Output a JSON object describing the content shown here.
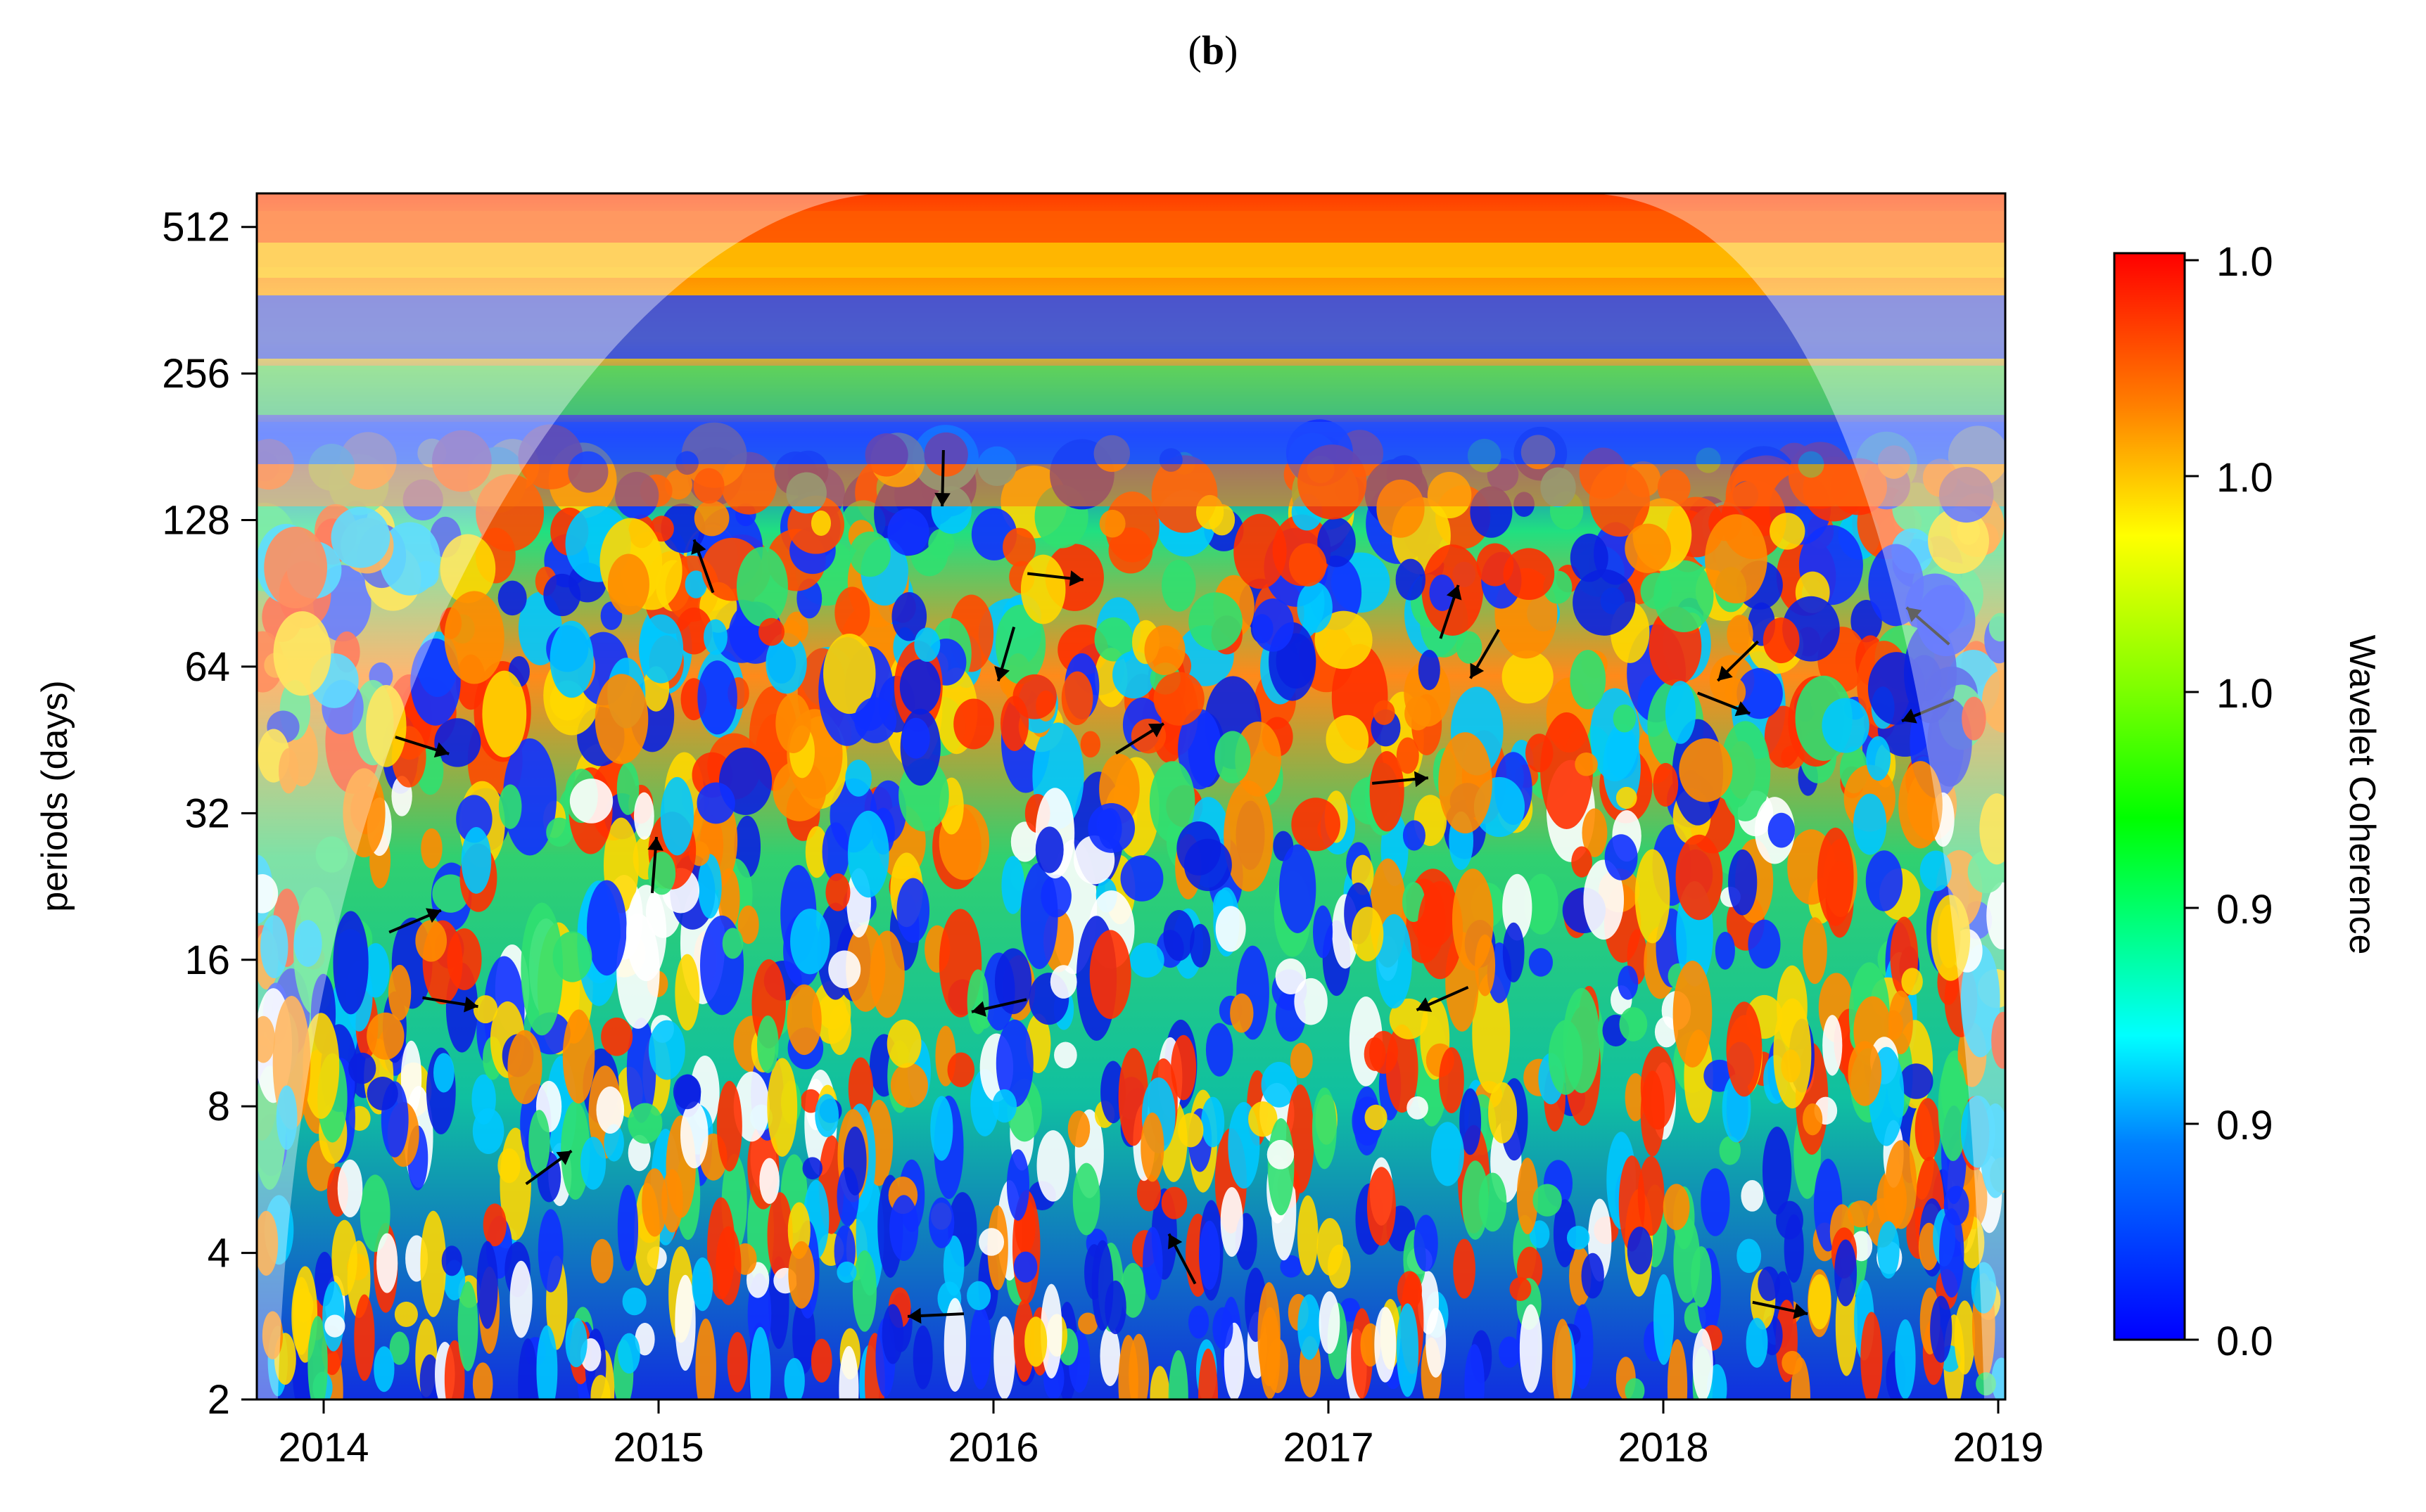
{
  "panel_label": "b",
  "chart_data": {
    "type": "heatmap",
    "subtype": "wavelet-coherence",
    "ylabel": "periods (days)",
    "y_scale": "log2",
    "ylim": [
      2,
      600
    ],
    "yticks": [
      2,
      4,
      8,
      16,
      32,
      64,
      128,
      256,
      512
    ],
    "x_categories": [
      "2014",
      "2015",
      "2016",
      "2017",
      "2018",
      "2019"
    ],
    "colorbar": {
      "label": "Wavelet Coherence",
      "tick_labels": [
        "1.0",
        "1.0",
        "1.0",
        "0.9",
        "0.9",
        "0.0"
      ],
      "colors_top_to_bottom": [
        "#ff0000",
        "#ff7f00",
        "#ffff00",
        "#7fff00",
        "#00ff00",
        "#00ff7f",
        "#00ffff",
        "#007fff",
        "#0000ff"
      ]
    },
    "cone_of_influence": true,
    "phase_arrows": true,
    "significance_contours_color": "#ffffff"
  }
}
